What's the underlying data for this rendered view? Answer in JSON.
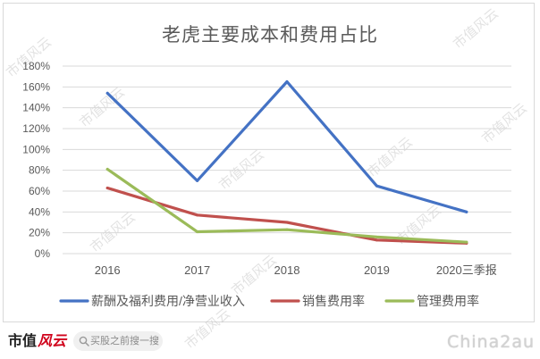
{
  "chart_data": {
    "type": "line",
    "title": "老虎主要成本和费用占比",
    "categories": [
      "2016",
      "2017",
      "2018",
      "2019",
      "2020三季报"
    ],
    "series": [
      {
        "name": "薪酬及福利费用/净营业收入",
        "values": [
          154,
          70,
          165,
          65,
          40
        ],
        "color": "#4472C4"
      },
      {
        "name": "销售费用率",
        "values": [
          63,
          37,
          30,
          13,
          10
        ],
        "color": "#C0504D"
      },
      {
        "name": "管理费用率",
        "values": [
          81,
          21,
          23,
          16,
          11
        ],
        "color": "#9BBB59"
      }
    ],
    "unit": "%",
    "ylim": [
      0,
      180
    ],
    "yticks": [
      0,
      20,
      40,
      60,
      80,
      100,
      120,
      140,
      160,
      180
    ],
    "ytick_labels": [
      "0%",
      "20%",
      "40%",
      "60%",
      "80%",
      "100%",
      "120%",
      "140%",
      "160%",
      "180%"
    ],
    "grid": true,
    "legend": "bottom"
  },
  "colors": {
    "gridline": "#D9D9D9",
    "axis_text": "#595959",
    "brand_red": "#D0021B"
  },
  "brand": {
    "logo_main": "市值",
    "logo_script": "风云"
  },
  "search": {
    "placeholder": "买股之前搜一搜",
    "icon": "search-icon"
  },
  "watermarks": {
    "diagonal": "市值风云",
    "corner": "China2au"
  }
}
